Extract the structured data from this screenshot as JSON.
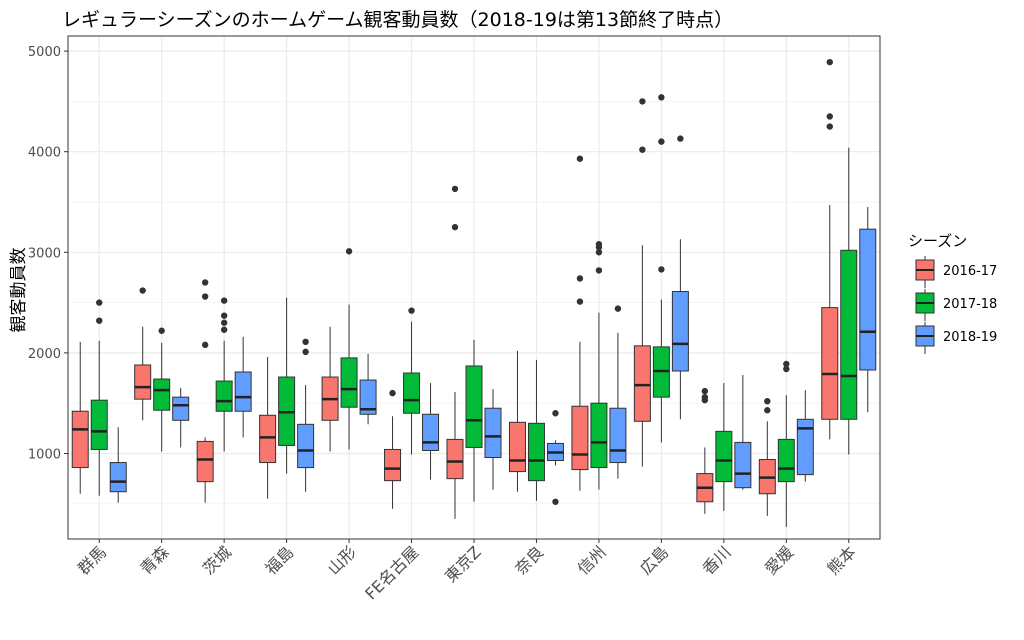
{
  "chart_data": {
    "type": "boxplot",
    "title": "レギュラーシーズンのホームゲーム観客動員数（2018-19は第13節終了時点）",
    "xlabel": "",
    "ylabel": "観客動員数",
    "ylim": [
      150,
      5150
    ],
    "yticks": [
      1000,
      2000,
      3000,
      4000,
      5000
    ],
    "grid": true,
    "legend": {
      "title": "シーズン",
      "position": "right"
    },
    "categories": [
      "群馬",
      "青森",
      "茨城",
      "福島",
      "山形",
      "FE名古屋",
      "東京Z",
      "奈良",
      "信州",
      "広島",
      "香川",
      "愛媛",
      "熊本"
    ],
    "series": [
      {
        "name": "2016-17",
        "color": "#F8766D",
        "boxes": [
          {
            "min": 600,
            "q1": 860,
            "median": 1240,
            "q3": 1420,
            "max": 2110,
            "outliers": []
          },
          {
            "min": 1330,
            "q1": 1540,
            "median": 1660,
            "q3": 1880,
            "max": 2260,
            "outliers": [
              2620
            ]
          },
          {
            "min": 510,
            "q1": 720,
            "median": 940,
            "q3": 1120,
            "max": 1160,
            "outliers": [
              2080,
              2560,
              2700
            ]
          },
          {
            "min": 550,
            "q1": 910,
            "median": 1160,
            "q3": 1380,
            "max": 1960,
            "outliers": []
          },
          {
            "min": 1020,
            "q1": 1330,
            "median": 1540,
            "q3": 1760,
            "max": 2260,
            "outliers": []
          },
          {
            "min": 450,
            "q1": 730,
            "median": 850,
            "q3": 1040,
            "max": 1370,
            "outliers": [
              1600
            ]
          },
          {
            "min": 350,
            "q1": 750,
            "median": 920,
            "q3": 1140,
            "max": 1610,
            "outliers": [
              3250,
              3630
            ]
          },
          {
            "min": 620,
            "q1": 820,
            "median": 930,
            "q3": 1310,
            "max": 2020,
            "outliers": []
          },
          {
            "min": 630,
            "q1": 840,
            "median": 990,
            "q3": 1470,
            "max": 2110,
            "outliers": [
              2510,
              2740,
              3930
            ]
          },
          {
            "min": 870,
            "q1": 1320,
            "median": 1680,
            "q3": 2070,
            "max": 3070,
            "outliers": [
              4020,
              4500
            ]
          },
          {
            "min": 400,
            "q1": 520,
            "median": 660,
            "q3": 800,
            "max": 1060,
            "outliers": [
              1530,
              1560,
              1620
            ]
          },
          {
            "min": 380,
            "q1": 600,
            "median": 760,
            "q3": 940,
            "max": 1320,
            "outliers": [
              1430,
              1520
            ]
          },
          {
            "min": 1140,
            "q1": 1340,
            "median": 1790,
            "q3": 2450,
            "max": 3470,
            "outliers": [
              4250,
              4350,
              4890
            ]
          }
        ]
      },
      {
        "name": "2017-18",
        "color": "#00BA38",
        "boxes": [
          {
            "min": 580,
            "q1": 1040,
            "median": 1220,
            "q3": 1530,
            "max": 2120,
            "outliers": [
              2320,
              2500
            ]
          },
          {
            "min": 1020,
            "q1": 1430,
            "median": 1630,
            "q3": 1740,
            "max": 2100,
            "outliers": [
              2220
            ]
          },
          {
            "min": 1020,
            "q1": 1420,
            "median": 1520,
            "q3": 1720,
            "max": 2120,
            "outliers": [
              2230,
              2300,
              2370,
              2520
            ]
          },
          {
            "min": 800,
            "q1": 1080,
            "median": 1410,
            "q3": 1760,
            "max": 2550,
            "outliers": []
          },
          {
            "min": 1040,
            "q1": 1460,
            "median": 1640,
            "q3": 1950,
            "max": 2480,
            "outliers": [
              3010
            ]
          },
          {
            "min": 990,
            "q1": 1400,
            "median": 1530,
            "q3": 1800,
            "max": 2310,
            "outliers": [
              2420
            ]
          },
          {
            "min": 520,
            "q1": 1060,
            "median": 1330,
            "q3": 1870,
            "max": 2130,
            "outliers": []
          },
          {
            "min": 530,
            "q1": 730,
            "median": 930,
            "q3": 1300,
            "max": 1930,
            "outliers": []
          },
          {
            "min": 640,
            "q1": 860,
            "median": 1110,
            "q3": 1500,
            "max": 2400,
            "outliers": [
              2820,
              3000,
              3050,
              3080
            ]
          },
          {
            "min": 1110,
            "q1": 1560,
            "median": 1820,
            "q3": 2060,
            "max": 2530,
            "outliers": [
              2830,
              4100,
              4540
            ]
          },
          {
            "min": 430,
            "q1": 720,
            "median": 930,
            "q3": 1220,
            "max": 1700,
            "outliers": []
          },
          {
            "min": 270,
            "q1": 720,
            "median": 850,
            "q3": 1140,
            "max": 1580,
            "outliers": [
              1840,
              1890
            ]
          },
          {
            "min": 990,
            "q1": 1340,
            "median": 1770,
            "q3": 3020,
            "max": 4040,
            "outliers": []
          }
        ]
      },
      {
        "name": "2018-19",
        "color": "#619CFF",
        "boxes": [
          {
            "min": 510,
            "q1": 620,
            "median": 720,
            "q3": 910,
            "max": 1260,
            "outliers": []
          },
          {
            "min": 1060,
            "q1": 1330,
            "median": 1480,
            "q3": 1560,
            "max": 1650,
            "outliers": []
          },
          {
            "min": 1160,
            "q1": 1420,
            "median": 1560,
            "q3": 1810,
            "max": 2160,
            "outliers": []
          },
          {
            "min": 620,
            "q1": 860,
            "median": 1030,
            "q3": 1290,
            "max": 1680,
            "outliers": [
              2010,
              2110
            ]
          },
          {
            "min": 1290,
            "q1": 1390,
            "median": 1440,
            "q3": 1730,
            "max": 1990,
            "outliers": []
          },
          {
            "min": 740,
            "q1": 1030,
            "median": 1110,
            "q3": 1390,
            "max": 1700,
            "outliers": []
          },
          {
            "min": 640,
            "q1": 960,
            "median": 1170,
            "q3": 1450,
            "max": 1640,
            "outliers": []
          },
          {
            "min": 880,
            "q1": 930,
            "median": 1010,
            "q3": 1100,
            "max": 1130,
            "outliers": [
              520,
              1400
            ]
          },
          {
            "min": 750,
            "q1": 910,
            "median": 1030,
            "q3": 1450,
            "max": 2200,
            "outliers": [
              2440
            ]
          },
          {
            "min": 1340,
            "q1": 1820,
            "median": 2090,
            "q3": 2610,
            "max": 3130,
            "outliers": [
              4130
            ]
          },
          {
            "min": 640,
            "q1": 660,
            "median": 800,
            "q3": 1110,
            "max": 1780,
            "outliers": []
          },
          {
            "min": 720,
            "q1": 790,
            "median": 1250,
            "q3": 1340,
            "max": 1630,
            "outliers": []
          },
          {
            "min": 1410,
            "q1": 1830,
            "median": 2210,
            "q3": 3230,
            "max": 3450,
            "outliers": []
          }
        ]
      }
    ]
  }
}
